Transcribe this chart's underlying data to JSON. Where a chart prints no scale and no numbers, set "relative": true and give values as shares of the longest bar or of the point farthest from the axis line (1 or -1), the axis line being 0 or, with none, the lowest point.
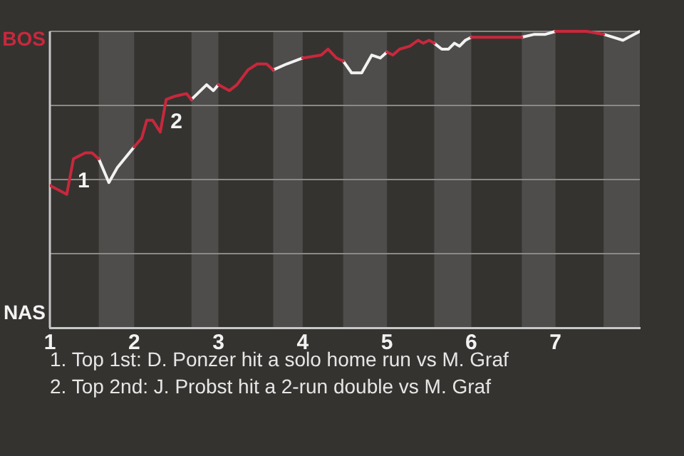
{
  "chart_data": {
    "type": "line",
    "relative": true,
    "x": [
      1.0,
      1.2,
      1.28,
      1.42,
      1.5,
      1.58,
      1.7,
      1.8,
      2.0,
      2.09,
      2.15,
      2.22,
      2.31,
      2.38,
      2.47,
      2.62,
      2.68,
      2.86,
      2.94,
      3.0,
      3.13,
      3.22,
      3.35,
      3.46,
      3.57,
      3.65,
      3.81,
      4.0,
      4.22,
      4.3,
      4.4,
      4.48,
      4.58,
      4.7,
      4.82,
      4.92,
      5.0,
      5.07,
      5.15,
      5.27,
      5.37,
      5.43,
      5.5,
      5.56,
      5.65,
      5.73,
      5.8,
      5.86,
      5.93,
      6.0,
      6.13,
      6.6,
      6.75,
      6.88,
      7.0,
      7.37,
      7.57,
      7.8,
      8.0
    ],
    "series": [
      {
        "color": "#c8283c",
        "values": [
          0.48,
          0.45,
          0.57,
          0.59,
          0.59,
          0.57,
          null,
          null,
          0.61,
          0.64,
          0.7,
          0.7,
          0.66,
          0.77,
          0.78,
          0.79,
          0.77,
          null,
          null,
          0.82,
          0.8,
          0.82,
          0.87,
          0.89,
          0.89,
          0.87,
          null,
          0.91,
          0.92,
          0.94,
          0.91,
          0.9,
          null,
          null,
          null,
          null,
          0.93,
          0.92,
          0.94,
          0.95,
          0.97,
          0.96,
          0.97,
          0.96,
          null,
          null,
          null,
          null,
          null,
          0.98,
          0.98,
          0.98,
          null,
          null,
          1,
          1,
          0.99,
          null,
          null
        ]
      },
      {
        "color": "#f2f2f2",
        "values": [
          null,
          null,
          null,
          null,
          null,
          0.57,
          0.49,
          0.54,
          0.61,
          null,
          null,
          null,
          null,
          null,
          null,
          null,
          0.77,
          0.82,
          0.8,
          0.82,
          null,
          null,
          null,
          null,
          null,
          0.87,
          0.89,
          0.91,
          null,
          null,
          null,
          0.9,
          0.86,
          0.86,
          0.92,
          0.91,
          0.93,
          null,
          null,
          null,
          null,
          null,
          null,
          0.96,
          0.94,
          0.94,
          0.96,
          0.95,
          0.97,
          0.98,
          null,
          0.98,
          0.99,
          0.99,
          1,
          null,
          0.99,
          0.97,
          1
        ]
      }
    ],
    "xlim": [
      1,
      8
    ],
    "xticks": [
      1,
      2,
      3,
      4,
      5,
      6,
      7
    ],
    "grid": "y",
    "legend": false,
    "marker": "none",
    "line_style": "solid",
    "bands": [
      {
        "axis": "x",
        "from": 1.58,
        "to": 2.0,
        "color": "#4e4d4b"
      },
      {
        "axis": "x",
        "from": 2.68,
        "to": 3.0,
        "color": "#4e4d4b"
      },
      {
        "axis": "x",
        "from": 3.65,
        "to": 4.0,
        "color": "#4e4d4b"
      },
      {
        "axis": "x",
        "from": 4.48,
        "to": 5.0,
        "color": "#4e4d4b"
      },
      {
        "axis": "x",
        "from": 5.56,
        "to": 6.0,
        "color": "#4e4d4b"
      },
      {
        "axis": "x",
        "from": 6.6,
        "to": 7.0,
        "color": "#4e4d4b"
      },
      {
        "axis": "x",
        "from": 7.57,
        "to": 8.0,
        "color": "#4e4d4b"
      }
    ],
    "annotations": [
      "BOS",
      "NAS",
      {
        "text": "1",
        "x": 1.28,
        "y": 0.57
      },
      {
        "text": "2",
        "x": 2.38,
        "y": 0.77
      },
      "1. Top 1st: D. Ponzer hit a solo home run vs M. Graf",
      "2. Top 2nd: J. Probst hit a 2-run double vs M. Graf"
    ]
  }
}
